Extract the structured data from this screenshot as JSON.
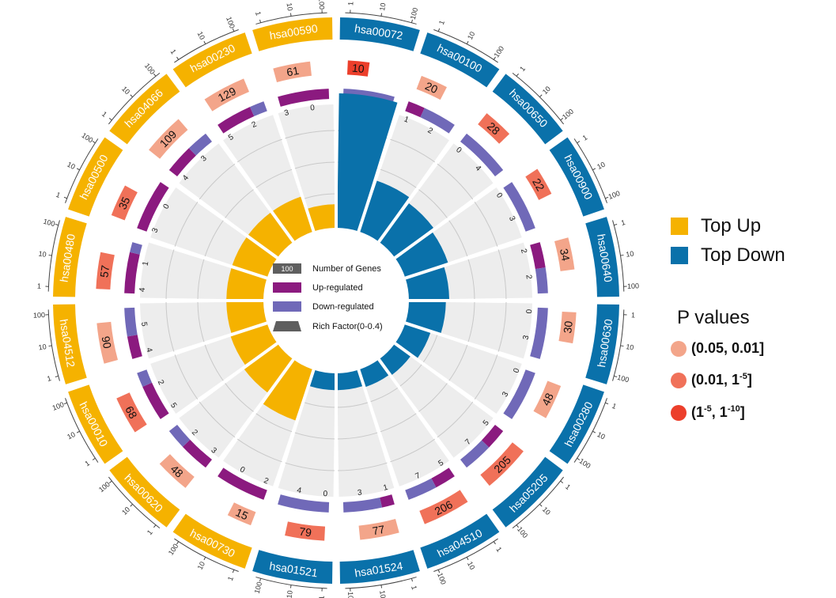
{
  "legend": {
    "groups": [
      {
        "label": "Top Up",
        "color": "#F5B200"
      },
      {
        "label": "Top Down",
        "color": "#0A71AA"
      }
    ]
  },
  "pvalue_legend": {
    "title": "P values",
    "items": [
      {
        "label": "(0.05, 0.01]",
        "color": "#F3A58A"
      },
      {
        "label": "(0.01, 1",
        "sup": "-5",
        "suffix": "]",
        "color": "#F07159"
      },
      {
        "label": "(1",
        "sup": "-5",
        "mid": ", 1",
        "sup2": "-10",
        "suffix": "]",
        "color": "#EC3F2B"
      }
    ]
  },
  "center_legend": {
    "genes_box": "100",
    "genes_label": "Number of Genes",
    "up_label": "Up-regulated",
    "down_label": "Down-regulated",
    "rich_label": "Rich Factor(0-0.4)"
  },
  "colors": {
    "up_group": "#F5B200",
    "down_group": "#0A71AA",
    "up_regulated": "#8B1A7F",
    "down_regulated": "#7069B8",
    "track_bg": "#EDEDED",
    "pvalue_levels": [
      "#F3A58A",
      "#F07159",
      "#EC3F2B"
    ]
  },
  "chart_data": {
    "type": "circos",
    "rich_factor_range": [
      0,
      0.4
    ],
    "scale_ticks": [
      "1",
      "10",
      "100"
    ],
    "terms": [
      {
        "id": "hsa00072",
        "group": "down",
        "genes": 10,
        "p_level": 2,
        "up": 0,
        "down": 4,
        "rich": 0.4
      },
      {
        "id": "hsa00100",
        "group": "down",
        "genes": 20,
        "p_level": 0,
        "up": 1,
        "down": 2,
        "rich": 0.16
      },
      {
        "id": "hsa00650",
        "group": "down",
        "genes": 28,
        "p_level": 1,
        "up": 0,
        "down": 4,
        "rich": 0.145
      },
      {
        "id": "hsa00900",
        "group": "down",
        "genes": 22,
        "p_level": 1,
        "up": 0,
        "down": 3,
        "rich": 0.135
      },
      {
        "id": "hsa00640",
        "group": "down",
        "genes": 34,
        "p_level": 0,
        "up": 2,
        "down": 2,
        "rich": 0.12
      },
      {
        "id": "hsa00630",
        "group": "down",
        "genes": 30,
        "p_level": 0,
        "up": 0,
        "down": 3,
        "rich": 0.11
      },
      {
        "id": "hsa00280",
        "group": "down",
        "genes": 48,
        "p_level": 0,
        "up": 0,
        "down": 3,
        "rich": 0.08
      },
      {
        "id": "hsa05205",
        "group": "down",
        "genes": 205,
        "p_level": 1,
        "up": 5,
        "down": 7,
        "rich": 0.06
      },
      {
        "id": "hsa04510",
        "group": "down",
        "genes": 206,
        "p_level": 1,
        "up": 5,
        "down": 7,
        "rich": 0.055
      },
      {
        "id": "hsa01524",
        "group": "down",
        "genes": 77,
        "p_level": 0,
        "up": 1,
        "down": 3,
        "rich": 0.05
      },
      {
        "id": "hsa01521",
        "group": "down",
        "genes": 79,
        "p_level": 1,
        "up": 0,
        "down": 4,
        "rich": 0.05
      },
      {
        "id": "hsa00730",
        "group": "up",
        "genes": 15,
        "p_level": 0,
        "up": 2,
        "down": 0,
        "rich": 0.16
      },
      {
        "id": "hsa00620",
        "group": "up",
        "genes": 48,
        "p_level": 0,
        "up": 3,
        "down": 2,
        "rich": 0.125
      },
      {
        "id": "hsa00010",
        "group": "up",
        "genes": 68,
        "p_level": 1,
        "up": 5,
        "down": 2,
        "rich": 0.115
      },
      {
        "id": "hsa04512",
        "group": "up",
        "genes": 90,
        "p_level": 0,
        "up": 4,
        "down": 5,
        "rich": 0.11
      },
      {
        "id": "hsa00480",
        "group": "up",
        "genes": 57,
        "p_level": 1,
        "up": 4,
        "down": 1,
        "rich": 0.11
      },
      {
        "id": "hsa00500",
        "group": "up",
        "genes": 35,
        "p_level": 1,
        "up": 3,
        "down": 0,
        "rich": 0.11
      },
      {
        "id": "hsa04066",
        "group": "up",
        "genes": 109,
        "p_level": 0,
        "up": 4,
        "down": 3,
        "rich": 0.11
      },
      {
        "id": "hsa00230",
        "group": "up",
        "genes": 129,
        "p_level": 0,
        "up": 5,
        "down": 2,
        "rich": 0.11
      },
      {
        "id": "hsa00590",
        "group": "up",
        "genes": 61,
        "p_level": 0,
        "up": 3,
        "down": 0,
        "rich": 0.07
      }
    ]
  }
}
